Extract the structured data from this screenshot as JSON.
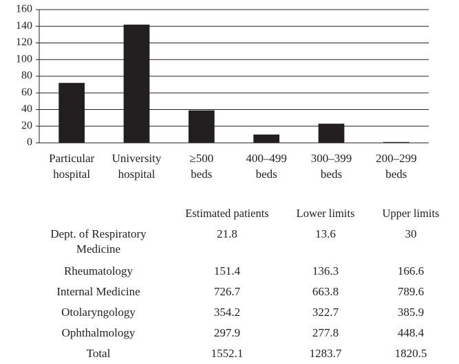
{
  "chart_data": {
    "type": "bar",
    "categories": [
      "Particular hospital",
      "University hospital",
      "≥500 beds",
      "400–499 beds",
      "300–399 beds",
      "200–299 beds"
    ],
    "values": [
      72,
      142,
      39,
      10,
      23,
      1
    ],
    "color": "#231f20",
    "ylim": [
      0,
      160
    ],
    "yticks": [
      0,
      20,
      40,
      60,
      80,
      100,
      120,
      140,
      160
    ],
    "grid": true
  },
  "table": {
    "columns": [
      "Estimated patients",
      "Lower limits",
      "Upper limits"
    ],
    "rows": [
      {
        "label": "Dept. of Respiratory Medicine",
        "values": [
          21.8,
          13.6,
          30
        ]
      },
      {
        "label": "Rheumatology",
        "values": [
          151.4,
          136.3,
          166.6
        ]
      },
      {
        "label": "Internal Medicine",
        "values": [
          726.7,
          663.8,
          789.6
        ]
      },
      {
        "label": "Otolaryngology",
        "values": [
          354.2,
          322.7,
          385.9
        ]
      },
      {
        "label": "Ophthalmology",
        "values": [
          297.9,
          277.8,
          448.4
        ]
      },
      {
        "label": "Total",
        "values": [
          1552.1,
          1283.7,
          1820.5
        ]
      }
    ]
  }
}
